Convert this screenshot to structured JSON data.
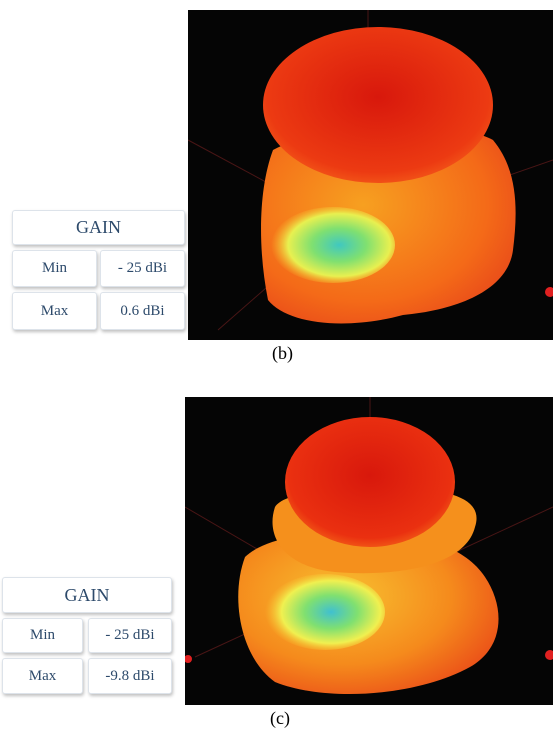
{
  "panels": [
    {
      "caption": "(b)",
      "gain_table": {
        "header": "GAIN",
        "rows": [
          [
            "Min",
            "- 25 dBi"
          ],
          [
            "Max",
            "0.6 dBi"
          ]
        ]
      }
    },
    {
      "caption": "(c)",
      "gain_table": {
        "header": "GAIN",
        "rows": [
          [
            "Min",
            "- 25 dBi"
          ],
          [
            "Max",
            "-9.8 dBi"
          ]
        ]
      }
    }
  ]
}
